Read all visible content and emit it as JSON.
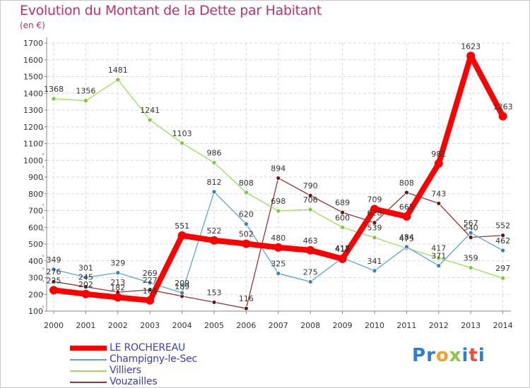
{
  "title": "Evolution du Montant de la Dette par Habitant",
  "unit": "(en €)",
  "logo": {
    "text": "Proxiti",
    "letter_colors": [
      "#2b7fd1",
      "#2b7fd1",
      "#f2a12e",
      "#8cc63e",
      "#2b7fd1",
      "#e94e3c",
      "#2b7fd1"
    ]
  },
  "chart_data": {
    "type": "line",
    "title": "Evolution du Montant de la Dette par Habitant",
    "ylabel": "(en €)",
    "xlabel": "",
    "x": [
      "2000",
      "2001",
      "2002",
      "2003",
      "2004",
      "2005",
      "2006",
      "2007",
      "2008",
      "2009",
      "2010",
      "2011",
      "2012",
      "2013",
      "2014"
    ],
    "ylim": [
      100,
      1700
    ],
    "yticks": [
      "100",
      "200",
      "300",
      "400",
      "500",
      "600",
      "700",
      "800",
      "900",
      "1000",
      "1100",
      "1200",
      "1300",
      "1400",
      "1500",
      "1600",
      "1700"
    ],
    "grid": true,
    "legend_position": "bottom-left",
    "series": [
      {
        "name": "LE ROCHEREAU",
        "color": "#ff0000",
        "marker": "#ff0000",
        "width": 8,
        "values": [
          225,
          202,
          182,
          164,
          551,
          522,
          502,
          480,
          463,
          412,
          709,
          665,
          981,
          1623,
          1263
        ],
        "labels": [
          "225",
          "202",
          "182",
          "164",
          "551",
          "522",
          "502",
          "480",
          "463",
          "412",
          "709",
          "665",
          "981",
          "1623",
          "1263"
        ]
      },
      {
        "name": "Champigny-le-Sec",
        "color": "#5da4d6",
        "marker": "#3d7fb8",
        "width": 1.3,
        "values": [
          349,
          301,
          329,
          269,
          209,
          812,
          620,
          325,
          275,
          418,
          341,
          484,
          371,
          567,
          462
        ],
        "labels": [
          "349",
          "301",
          "329",
          "269",
          "209",
          "812",
          "620",
          "325",
          "275",
          "418",
          "341",
          "484",
          "371",
          "567",
          "462"
        ]
      },
      {
        "name": "Villiers",
        "color": "#9ddc5a",
        "marker": "#7cc83c",
        "width": 1.3,
        "values": [
          1368,
          1356,
          1481,
          1241,
          1103,
          986,
          808,
          698,
          706,
          600,
          539,
          475,
          417,
          359,
          297
        ],
        "labels": [
          "1368",
          "1356",
          "1481",
          "1241",
          "1103",
          "986",
          "808",
          "698",
          "706",
          "600",
          "539",
          "475",
          "417",
          "359",
          "297"
        ]
      },
      {
        "name": "Vouzailles",
        "color": "#8a3a3a",
        "marker": "#5e1a1a",
        "width": 1.3,
        "values": [
          276,
          245,
          213,
          227,
          189,
          153,
          116,
          894,
          790,
          689,
          628,
          808,
          743,
          540,
          552
        ],
        "labels": [
          "276",
          "245",
          "213",
          "227",
          "189",
          "153",
          "116",
          "894",
          "790",
          "689",
          "628",
          "808",
          "743",
          "540",
          "552"
        ]
      }
    ]
  }
}
